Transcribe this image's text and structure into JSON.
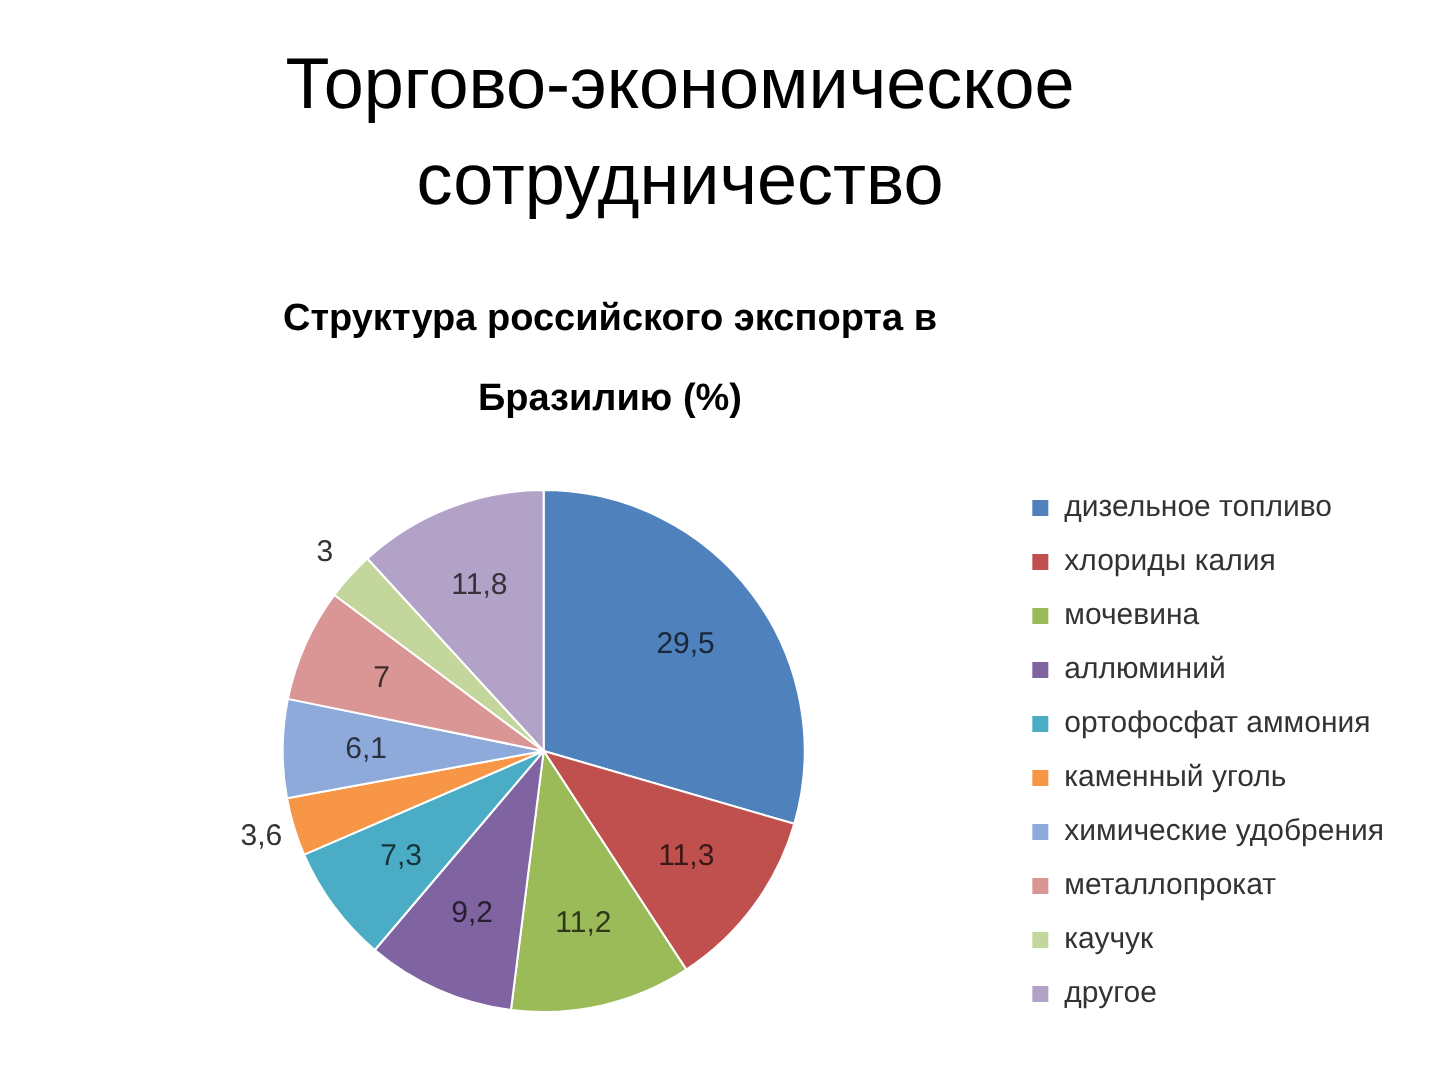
{
  "chart_data": {
    "type": "pie",
    "title": "Торгово-экономическое сотрудничество",
    "subtitle": "Структура российского экспорта в Бразилию (%)",
    "categories": [
      "дизельное топливо",
      "хлориды калия",
      "мочевина",
      "аллюминий",
      "ортофосфат аммония",
      "каменный уголь",
      "химические удобрения",
      "металлопрокат",
      "каучук",
      "другое"
    ],
    "values": [
      29.5,
      11.3,
      11.2,
      9.2,
      7.3,
      3.6,
      6.1,
      7,
      3,
      11.8
    ],
    "colors": [
      "#4f81bd",
      "#c0504d",
      "#9bbb59",
      "#8064a2",
      "#4bacc6",
      "#f79646",
      "#8eaadb",
      "#d99694",
      "#c3d69b",
      "#b3a2c7"
    ],
    "value_labels": [
      "29,5",
      "11,3",
      "11,2",
      "9,2",
      "7,3",
      "3,6",
      "6,1",
      "7",
      "3",
      "11,8"
    ],
    "legend": "right"
  }
}
